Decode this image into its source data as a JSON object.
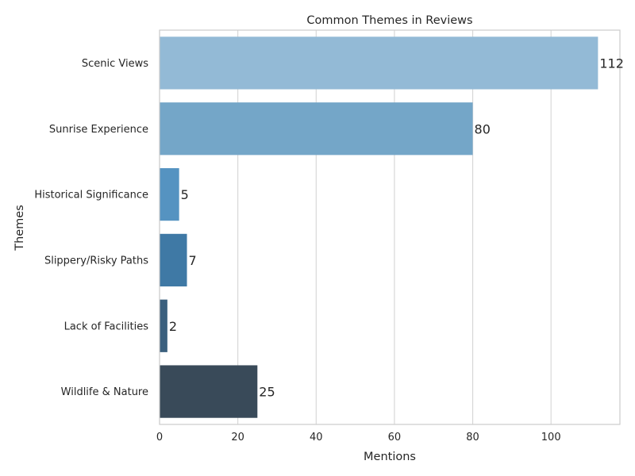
{
  "chart_data": {
    "type": "bar",
    "orientation": "horizontal",
    "title": "Common Themes in Reviews",
    "xlabel": "Mentions",
    "ylabel": "Themes",
    "categories": [
      "Scenic Views",
      "Sunrise Experience",
      "Historical Significance",
      "Slippery/Risky Paths",
      "Lack of Facilities",
      "Wildlife & Nature"
    ],
    "values": [
      112,
      80,
      5,
      7,
      2,
      25
    ],
    "data_labels": [
      "112",
      "80",
      "5",
      "7",
      "2",
      "25"
    ],
    "colors": [
      "#93bad6",
      "#74a6c8",
      "#5593c1",
      "#3f79a5",
      "#3b607e",
      "#394a59"
    ],
    "xlim": [
      0,
      117.6
    ],
    "xticks": [
      0,
      20,
      40,
      60,
      80,
      100
    ],
    "xtick_labels": [
      "0",
      "20",
      "40",
      "60",
      "80",
      "100"
    ],
    "grid": "vertical",
    "legend": "none"
  }
}
